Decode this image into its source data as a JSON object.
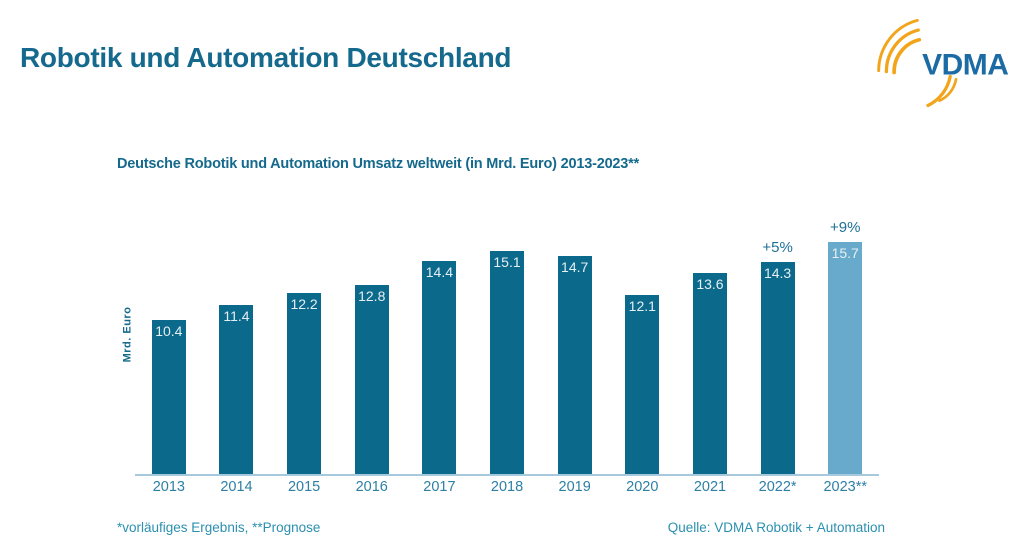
{
  "page": {
    "title": "Robotik und Automation Deutschland",
    "footnote": "*vorläufiges Ergebnis, **Prognose",
    "source": "Quelle: VDMA Robotik + Automation"
  },
  "logo": {
    "text": "VDMA",
    "text_color": "#1D6BA4",
    "arc_color": "#F2A51A"
  },
  "chart_data": {
    "type": "bar",
    "title": "Deutsche Robotik und Automation Umsatz weltweit (in Mrd. Euro) 2013-2023**",
    "xlabel": "",
    "ylabel": "Mrd. Euro",
    "ylim": [
      0,
      16.5
    ],
    "grid": false,
    "legend": "none",
    "categories": [
      "2013",
      "2014",
      "2015",
      "2016",
      "2017",
      "2018",
      "2019",
      "2020",
      "2021",
      "2022*",
      "2023**"
    ],
    "values": [
      10.4,
      11.4,
      12.2,
      12.8,
      14.4,
      15.1,
      14.7,
      12.1,
      13.6,
      14.3,
      15.7
    ],
    "growth_annotations": [
      {
        "index": 9,
        "label": "+5%"
      },
      {
        "index": 10,
        "label": "+9%"
      }
    ],
    "forecast_indices": [
      10
    ],
    "bar_colors": {
      "default": "#0B698B",
      "forecast": "#68AACB"
    }
  },
  "colors": {
    "heading": "#14698C",
    "axis_line": "#A6C9DE",
    "tick_label": "#2D7FA6",
    "growth_label": "#1D7096",
    "footer_text": "#2B90B0",
    "value_label": "#E6EFF4"
  }
}
